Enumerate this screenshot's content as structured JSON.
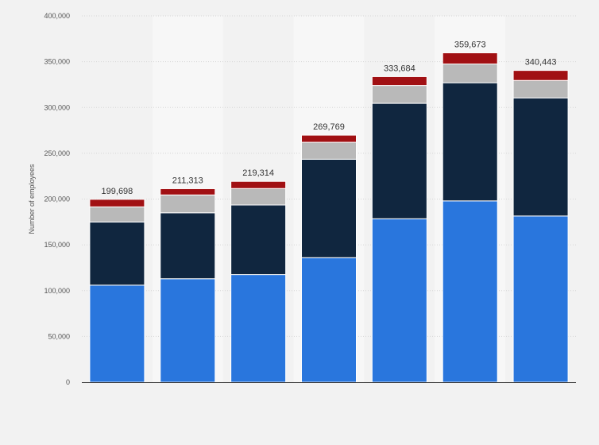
{
  "chart_data": {
    "type": "bar",
    "stacked": true,
    "ylabel": "Number of employees",
    "xlabel": "",
    "ylim": [
      0,
      400000
    ],
    "y_ticks": [
      0,
      50000,
      100000,
      150000,
      200000,
      250000,
      300000,
      350000,
      400000
    ],
    "y_tick_labels": [
      "0",
      "50,000",
      "100,000",
      "150,000",
      "200,000",
      "250,000",
      "300,000",
      "350,000",
      "400,000"
    ],
    "grid": true,
    "categories": [
      "",
      "",
      "",
      "",
      "",
      "",
      ""
    ],
    "series": [
      {
        "color": "#2976dd",
        "values": [
          106000,
          113000,
          117500,
          136000,
          178500,
          198000,
          181500
        ]
      },
      {
        "color": "#10263f",
        "values": [
          69000,
          72000,
          76000,
          107500,
          126000,
          129000,
          129000
        ]
      },
      {
        "color": "#b9b9b9",
        "values": [
          16500,
          19500,
          18000,
          18500,
          19500,
          20500,
          19000
        ]
      },
      {
        "color": "#a11013",
        "values": [
          8198,
          6813,
          7814,
          7769,
          9684,
          12173,
          10943
        ]
      }
    ],
    "totals": [
      199698,
      211313,
      219314,
      269769,
      333684,
      359673,
      340443
    ],
    "total_labels": [
      "199,698",
      "211,313",
      "219,314",
      "269,769",
      "333,684",
      "359,673",
      "340,443"
    ]
  }
}
